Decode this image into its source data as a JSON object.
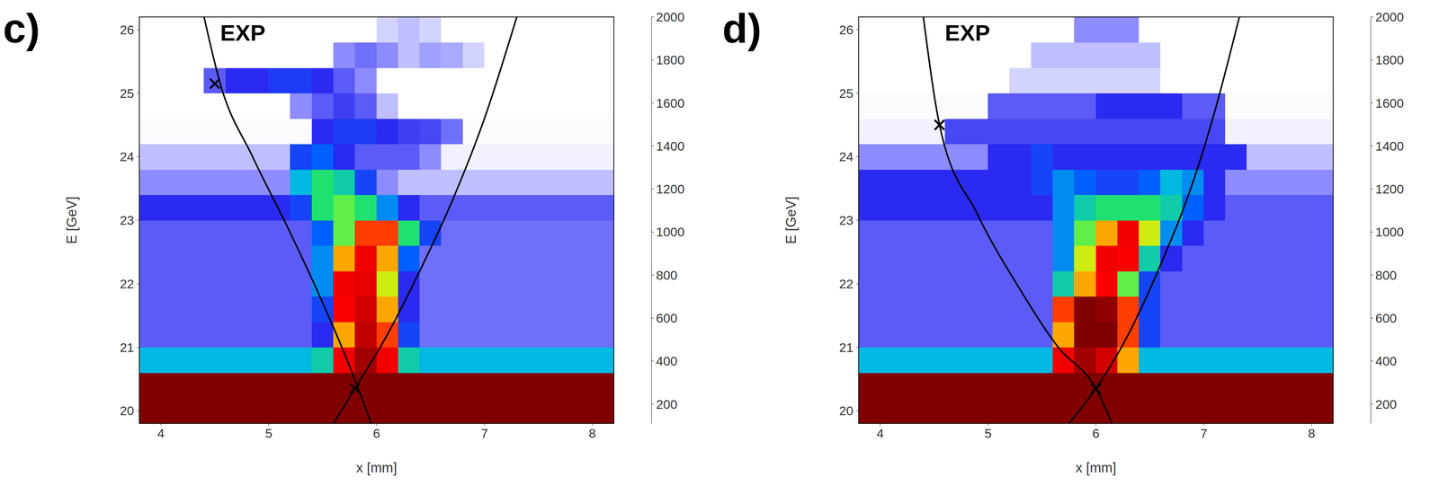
{
  "chart_data": [
    {
      "type": "heatmap",
      "title": "c)",
      "xlabel": "x [mm]",
      "ylabel": "E [GeV]",
      "xlim": [
        3.8,
        8.2
      ],
      "ylim": [
        19.8,
        26.2
      ],
      "xticks": [
        4,
        5,
        6,
        7,
        8
      ],
      "yticks": [
        20,
        21,
        22,
        23,
        24,
        25,
        26
      ],
      "x_edges": [
        3.8,
        4.0,
        4.2,
        4.4,
        4.6,
        4.8,
        5.0,
        5.2,
        5.4,
        5.6,
        5.8,
        6.0,
        6.2,
        6.4,
        6.6,
        6.8,
        7.0,
        7.2,
        7.4,
        7.6,
        7.8,
        8.0,
        8.2
      ],
      "y_edges": [
        19.8,
        20.2,
        20.6,
        21.0,
        21.4,
        21.8,
        22.2,
        22.6,
        23.0,
        23.4,
        23.8,
        24.2,
        24.6,
        25.0,
        25.4,
        25.8,
        26.2
      ],
      "cells": [
        [
          3000,
          3000,
          3000,
          3000,
          3000,
          3000,
          3000,
          3000,
          3000,
          3000,
          3000,
          3000,
          3000,
          3000,
          3000,
          3000,
          3000,
          3000,
          3000,
          3000,
          3000,
          3000
        ],
        [
          3000,
          3000,
          3000,
          3000,
          3000,
          3000,
          3000,
          3000,
          3000,
          3000,
          3000,
          3000,
          3000,
          3000,
          3000,
          3000,
          3000,
          3000,
          3000,
          3000,
          3000,
          3000
        ],
        [
          550,
          550,
          550,
          550,
          550,
          550,
          550,
          550,
          600,
          1200,
          1800,
          1200,
          600,
          550,
          550,
          550,
          550,
          550,
          550,
          550,
          550,
          550
        ],
        [
          300,
          300,
          300,
          300,
          300,
          300,
          300,
          300,
          350,
          900,
          1600,
          1000,
          400,
          280,
          280,
          280,
          280,
          280,
          280,
          280,
          280,
          280
        ],
        [
          300,
          300,
          300,
          300,
          300,
          300,
          300,
          300,
          400,
          1100,
          1500,
          900,
          350,
          280,
          280,
          280,
          280,
          280,
          280,
          280,
          280,
          280
        ],
        [
          300,
          300,
          300,
          300,
          300,
          300,
          300,
          300,
          500,
          1200,
          1300,
          800,
          350,
          280,
          280,
          280,
          280,
          280,
          280,
          280,
          280,
          280
        ],
        [
          300,
          300,
          300,
          300,
          300,
          300,
          300,
          300,
          500,
          900,
          1200,
          900,
          450,
          280,
          280,
          280,
          280,
          280,
          280,
          280,
          280,
          280
        ],
        [
          300,
          300,
          300,
          300,
          300,
          300,
          300,
          300,
          450,
          700,
          1000,
          1000,
          650,
          400,
          280,
          280,
          280,
          280,
          280,
          280,
          280,
          280
        ],
        [
          350,
          350,
          350,
          350,
          350,
          350,
          350,
          400,
          650,
          700,
          650,
          500,
          350,
          300,
          300,
          300,
          300,
          300,
          300,
          300,
          300,
          300
        ],
        [
          250,
          250,
          250,
          250,
          250,
          250,
          250,
          550,
          650,
          600,
          400,
          250,
          200,
          200,
          200,
          200,
          200,
          200,
          200,
          200,
          200,
          200
        ],
        [
          200,
          200,
          200,
          200,
          200,
          200,
          200,
          400,
          450,
          350,
          300,
          300,
          300,
          250,
          150,
          150,
          150,
          150,
          150,
          150,
          150,
          150
        ],
        [
          120,
          120,
          120,
          120,
          120,
          120,
          120,
          120,
          350,
          380,
          380,
          350,
          330,
          320,
          280,
          120,
          120,
          120,
          120,
          120,
          120,
          120
        ],
        [
          100,
          100,
          100,
          100,
          100,
          100,
          100,
          250,
          300,
          330,
          300,
          200,
          100,
          100,
          100,
          100,
          100,
          100,
          100,
          100,
          100,
          100
        ],
        [
          100,
          100,
          100,
          300,
          350,
          350,
          380,
          380,
          350,
          300,
          250,
          100,
          100,
          100,
          100,
          100,
          100,
          100,
          100,
          100,
          100,
          100
        ],
        [
          100,
          100,
          100,
          100,
          100,
          100,
          100,
          100,
          100,
          250,
          280,
          250,
          200,
          230,
          220,
          180,
          100,
          100,
          100,
          100,
          100,
          100
        ],
        [
          100,
          100,
          100,
          100,
          100,
          100,
          100,
          100,
          100,
          100,
          100,
          180,
          200,
          180,
          100,
          100,
          100,
          100,
          100,
          100,
          100,
          100
        ]
      ],
      "colorbar": {
        "range": [
          110,
          2000
        ],
        "ticks": [
          200,
          400,
          600,
          800,
          1000,
          1200,
          1400,
          1600,
          1800,
          2000
        ]
      },
      "curves": [
        {
          "x": [
            4.4,
            4.55,
            4.85,
            5.2,
            5.5,
            5.75,
            5.95
          ],
          "y": [
            26.2,
            25.15,
            24.0,
            22.8,
            21.7,
            20.7,
            19.8
          ],
          "color": "#000000",
          "line_style": "solid"
        },
        {
          "x": [
            5.6,
            5.8,
            6.1,
            6.4,
            6.7,
            7.0,
            7.3
          ],
          "y": [
            19.8,
            20.35,
            21.2,
            22.2,
            23.3,
            24.6,
            26.2
          ],
          "color": "#000000",
          "line_style": "solid"
        }
      ],
      "markers": {
        "x": [
          4.5,
          5.8
        ],
        "y": [
          25.15,
          20.35
        ],
        "marker": "x",
        "color": "#000000"
      },
      "annotations": [
        {
          "text": "EXP",
          "x": 4.55,
          "y": 25.95
        }
      ]
    },
    {
      "type": "heatmap",
      "title": "d)",
      "xlabel": "x [mm]",
      "ylabel": "E [GeV]",
      "xlim": [
        3.8,
        8.2
      ],
      "ylim": [
        19.8,
        26.2
      ],
      "xticks": [
        4,
        5,
        6,
        7,
        8
      ],
      "yticks": [
        20,
        21,
        22,
        23,
        24,
        25,
        26
      ],
      "x_edges": [
        3.8,
        4.0,
        4.2,
        4.4,
        4.6,
        4.8,
        5.0,
        5.2,
        5.4,
        5.6,
        5.8,
        6.0,
        6.2,
        6.4,
        6.6,
        6.8,
        7.0,
        7.2,
        7.4,
        7.6,
        7.8,
        8.0,
        8.2
      ],
      "y_edges": [
        19.8,
        20.2,
        20.6,
        21.0,
        21.4,
        21.8,
        22.2,
        22.6,
        23.0,
        23.4,
        23.8,
        24.2,
        24.6,
        25.0,
        25.4,
        25.8,
        26.2
      ],
      "cells": [
        [
          3000,
          3000,
          3000,
          3000,
          3000,
          3000,
          3000,
          3000,
          3000,
          3000,
          3000,
          3000,
          3000,
          3000,
          3000,
          3000,
          3000,
          3000,
          3000,
          3000,
          3000,
          3000
        ],
        [
          3000,
          3000,
          3000,
          3000,
          3000,
          3000,
          3000,
          3000,
          3000,
          3000,
          3000,
          3000,
          3000,
          3000,
          3000,
          3000,
          3000,
          3000,
          3000,
          3000,
          3000,
          3000
        ],
        [
          550,
          550,
          550,
          550,
          550,
          550,
          550,
          550,
          550,
          1200,
          1800,
          1500,
          900,
          550,
          550,
          550,
          550,
          550,
          550,
          550,
          550,
          550
        ],
        [
          300,
          300,
          300,
          300,
          300,
          300,
          300,
          300,
          300,
          900,
          2000,
          2000,
          1000,
          400,
          300,
          300,
          300,
          300,
          300,
          300,
          300,
          300
        ],
        [
          300,
          300,
          300,
          300,
          300,
          300,
          300,
          300,
          300,
          1000,
          2000,
          1900,
          1000,
          400,
          300,
          300,
          300,
          300,
          300,
          300,
          300,
          300
        ],
        [
          300,
          300,
          300,
          300,
          300,
          300,
          300,
          300,
          300,
          600,
          900,
          1100,
          700,
          400,
          300,
          300,
          300,
          300,
          300,
          300,
          300,
          300
        ],
        [
          300,
          300,
          300,
          300,
          300,
          300,
          300,
          300,
          300,
          500,
          800,
          1200,
          1100,
          600,
          350,
          300,
          300,
          300,
          300,
          300,
          300,
          300
        ],
        [
          300,
          300,
          300,
          300,
          300,
          300,
          300,
          300,
          300,
          500,
          700,
          900,
          1200,
          800,
          500,
          350,
          300,
          300,
          300,
          300,
          300,
          300
        ],
        [
          350,
          350,
          350,
          350,
          350,
          350,
          350,
          350,
          350,
          500,
          600,
          650,
          650,
          650,
          600,
          450,
          350,
          300,
          300,
          300,
          300,
          300
        ],
        [
          350,
          350,
          350,
          350,
          350,
          350,
          350,
          350,
          400,
          500,
          450,
          400,
          400,
          450,
          550,
          500,
          350,
          250,
          250,
          250,
          250,
          250
        ],
        [
          250,
          250,
          250,
          250,
          250,
          250,
          350,
          350,
          400,
          350,
          350,
          350,
          350,
          350,
          350,
          350,
          350,
          350,
          200,
          200,
          200,
          200
        ],
        [
          150,
          150,
          150,
          150,
          320,
          320,
          320,
          320,
          320,
          320,
          320,
          320,
          320,
          320,
          320,
          320,
          320,
          150,
          150,
          150,
          150,
          150
        ],
        [
          120,
          120,
          120,
          120,
          120,
          120,
          300,
          300,
          300,
          300,
          300,
          350,
          350,
          350,
          350,
          300,
          300,
          120,
          120,
          120,
          120,
          120
        ],
        [
          100,
          100,
          100,
          100,
          100,
          100,
          100,
          180,
          180,
          180,
          180,
          180,
          180,
          180,
          100,
          100,
          100,
          100,
          100,
          100,
          100,
          100
        ],
        [
          100,
          100,
          100,
          100,
          100,
          100,
          100,
          100,
          200,
          200,
          200,
          200,
          200,
          200,
          100,
          100,
          100,
          100,
          100,
          100,
          100,
          100
        ],
        [
          100,
          100,
          100,
          100,
          100,
          100,
          100,
          100,
          100,
          100,
          250,
          250,
          250,
          100,
          100,
          100,
          100,
          100,
          100,
          100,
          100,
          100
        ]
      ],
      "colorbar": {
        "range": [
          110,
          2000
        ],
        "ticks": [
          200,
          400,
          600,
          800,
          1000,
          1200,
          1400,
          1600,
          1800,
          2000
        ]
      },
      "curves": [
        {
          "x": [
            4.4,
            4.55,
            4.9,
            5.3,
            5.65,
            6.0,
            6.15
          ],
          "y": [
            26.2,
            24.5,
            23.1,
            21.9,
            21.0,
            20.35,
            19.8
          ],
          "color": "#000000",
          "line_style": "solid"
        },
        {
          "x": [
            5.75,
            6.0,
            6.3,
            6.6,
            6.9,
            7.1,
            7.33
          ],
          "y": [
            19.8,
            20.35,
            21.2,
            22.3,
            23.6,
            24.7,
            26.2
          ],
          "color": "#000000",
          "line_style": "solid"
        }
      ],
      "markers": {
        "x": [
          4.55,
          6.0
        ],
        "y": [
          24.5,
          20.35
        ],
        "marker": "x",
        "color": "#000000"
      },
      "annotations": [
        {
          "text": "EXP",
          "x": 4.6,
          "y": 25.95
        }
      ]
    }
  ]
}
